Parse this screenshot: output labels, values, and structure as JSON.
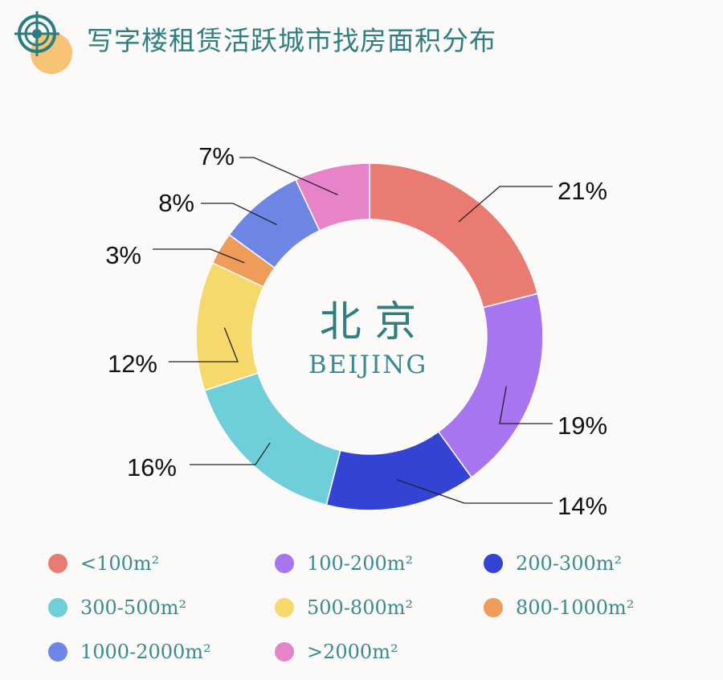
{
  "header": {
    "title": "写字楼租赁活跃城市找房面积分布",
    "logo_icon": "target-logo-icon"
  },
  "center": {
    "city_cn": "北 京",
    "city_en": "BEIJING"
  },
  "chart_data": {
    "type": "pie",
    "variant": "donut",
    "title": "写字楼租赁活跃城市找房面积分布",
    "unit": "%",
    "categories": [
      "<100m²",
      "100-200m²",
      "200-300m²",
      "300-500m²",
      "500-800m²",
      "800-1000m²",
      "1000-2000m²",
      ">2000m²"
    ],
    "values": [
      21,
      19,
      14,
      16,
      12,
      3,
      8,
      7
    ],
    "labels": [
      "21%",
      "19%",
      "14%",
      "16%",
      "12%",
      "3%",
      "8%",
      "7%"
    ],
    "colors": [
      "#ea7b72",
      "#a875f0",
      "#3343d4",
      "#6fcfd9",
      "#f7d86a",
      "#ef9b5a",
      "#6d86e6",
      "#e784c9"
    ],
    "legend_position": "bottom"
  },
  "legend": [
    {
      "label": "<100m²",
      "color": "#ea7b72"
    },
    {
      "label": "100-200m²",
      "color": "#a875f0"
    },
    {
      "label": "200-300m²",
      "color": "#3343d4"
    },
    {
      "label": "300-500m²",
      "color": "#6fcfd9"
    },
    {
      "label": "500-800m²",
      "color": "#f7d86a"
    },
    {
      "label": "800-1000m²",
      "color": "#ef9b5a"
    },
    {
      "label": "1000-2000m²",
      "color": "#6d86e6"
    },
    {
      "label": ">2000m²",
      "color": "#e784c9"
    }
  ]
}
